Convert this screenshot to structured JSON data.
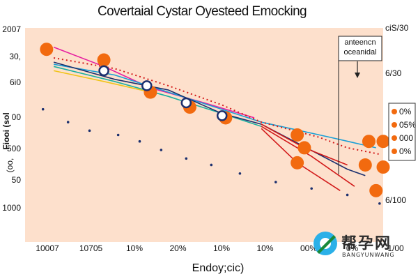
{
  "chart_data": {
    "type": "line",
    "title": "Covertaial Cystar Oyesteed Emocking",
    "xlabel": "Endoy;cic)",
    "ylabel": "Fiooi (sol",
    "ylabel_side": "(oo,",
    "left_tick_labels": [
      "2007",
      "30,",
      "6i0",
      "00",
      "500",
      "50",
      "1000"
    ],
    "right_tick_labels": [
      "ciS/30",
      "6/30",
      "6/100"
    ],
    "x_tick_labels": [
      "10007",
      "10705",
      "10%",
      "20%",
      "10%",
      "10%",
      "00%",
      "0%",
      "1/00"
    ],
    "xlim": [
      0,
      100
    ],
    "ylim": [
      0,
      100
    ],
    "background": "#fde0cc",
    "annotation": {
      "lines": [
        "anteencn",
        "oceanidal"
      ]
    },
    "legend": {
      "placement": "right",
      "entries": [
        {
          "label": "0%",
          "color": "#f26a0f"
        },
        {
          "label": "05%",
          "color": "#f26a0f"
        },
        {
          "label": "000",
          "color": "#f26a0f"
        },
        {
          "label": "0%",
          "color": "#f26a0f"
        }
      ]
    },
    "series": [
      {
        "name": "Magenta",
        "color": "#e61ea0",
        "style": "solid",
        "x": [
          8,
          22,
          35,
          50,
          64
        ],
        "y": [
          91,
          82,
          72,
          65,
          58
        ]
      },
      {
        "name": "Blue",
        "color": "#1a9fd6",
        "style": "solid",
        "x": [
          8,
          25,
          40,
          55,
          66,
          85,
          98
        ],
        "y": [
          83,
          78,
          70,
          62,
          56,
          49,
          44
        ]
      },
      {
        "name": "Teal",
        "color": "#1ab0a0",
        "style": "solid",
        "x": [
          8,
          25,
          40,
          55,
          66
        ],
        "y": [
          82,
          75,
          68,
          60,
          54
        ]
      },
      {
        "name": "Yellow",
        "color": "#f0c419",
        "style": "solid",
        "x": [
          8,
          22,
          35
        ],
        "y": [
          80,
          75,
          70
        ]
      },
      {
        "name": "Navy",
        "color": "#1b2f6e",
        "style": "solid",
        "x": [
          8,
          25,
          40,
          55,
          66,
          90,
          95
        ],
        "y": [
          84,
          76,
          71,
          60,
          55,
          34,
          31
        ]
      },
      {
        "name": "Red dotted",
        "color": "#d21a1a",
        "style": "dotted",
        "x": [
          8,
          25,
          40,
          55,
          66,
          82,
          90,
          99
        ],
        "y": [
          86,
          81,
          73,
          64,
          56,
          49,
          44,
          41
        ]
      },
      {
        "name": "Red fan 1",
        "color": "#d21a1a",
        "style": "solid",
        "x": [
          66,
          78,
          90
        ],
        "y": [
          55,
          44,
          36
        ]
      },
      {
        "name": "Red fan 2",
        "color": "#d21a1a",
        "style": "solid",
        "x": [
          66,
          80,
          92
        ],
        "y": [
          54,
          40,
          26
        ]
      },
      {
        "name": "Red fan 3",
        "color": "#d21a1a",
        "style": "solid",
        "x": [
          66,
          76,
          88
        ],
        "y": [
          53,
          37,
          24
        ]
      },
      {
        "name": "Navy triangles",
        "color": "#1b2f6e",
        "style": "markers",
        "x": [
          5,
          12,
          18,
          26,
          32,
          38,
          45,
          52,
          60,
          70,
          80,
          90,
          99
        ],
        "y": [
          62,
          56,
          52,
          50,
          47,
          43,
          39,
          36,
          32,
          28,
          25,
          22,
          18
        ]
      }
    ],
    "markers": {
      "orange": [
        [
          6,
          90
        ],
        [
          22,
          85
        ],
        [
          35,
          70
        ],
        [
          46,
          63
        ],
        [
          56,
          58
        ],
        [
          76,
          50
        ],
        [
          78,
          44
        ],
        [
          76,
          37
        ],
        [
          96,
          47
        ],
        [
          100,
          47
        ],
        [
          95,
          36
        ],
        [
          100,
          35
        ],
        [
          98,
          24
        ]
      ],
      "ring": [
        [
          22,
          80
        ],
        [
          34,
          73
        ],
        [
          45,
          65
        ],
        [
          55,
          59
        ]
      ]
    }
  },
  "watermark": {
    "cn": "帮孕网",
    "en": "BANGYUNWANG"
  }
}
